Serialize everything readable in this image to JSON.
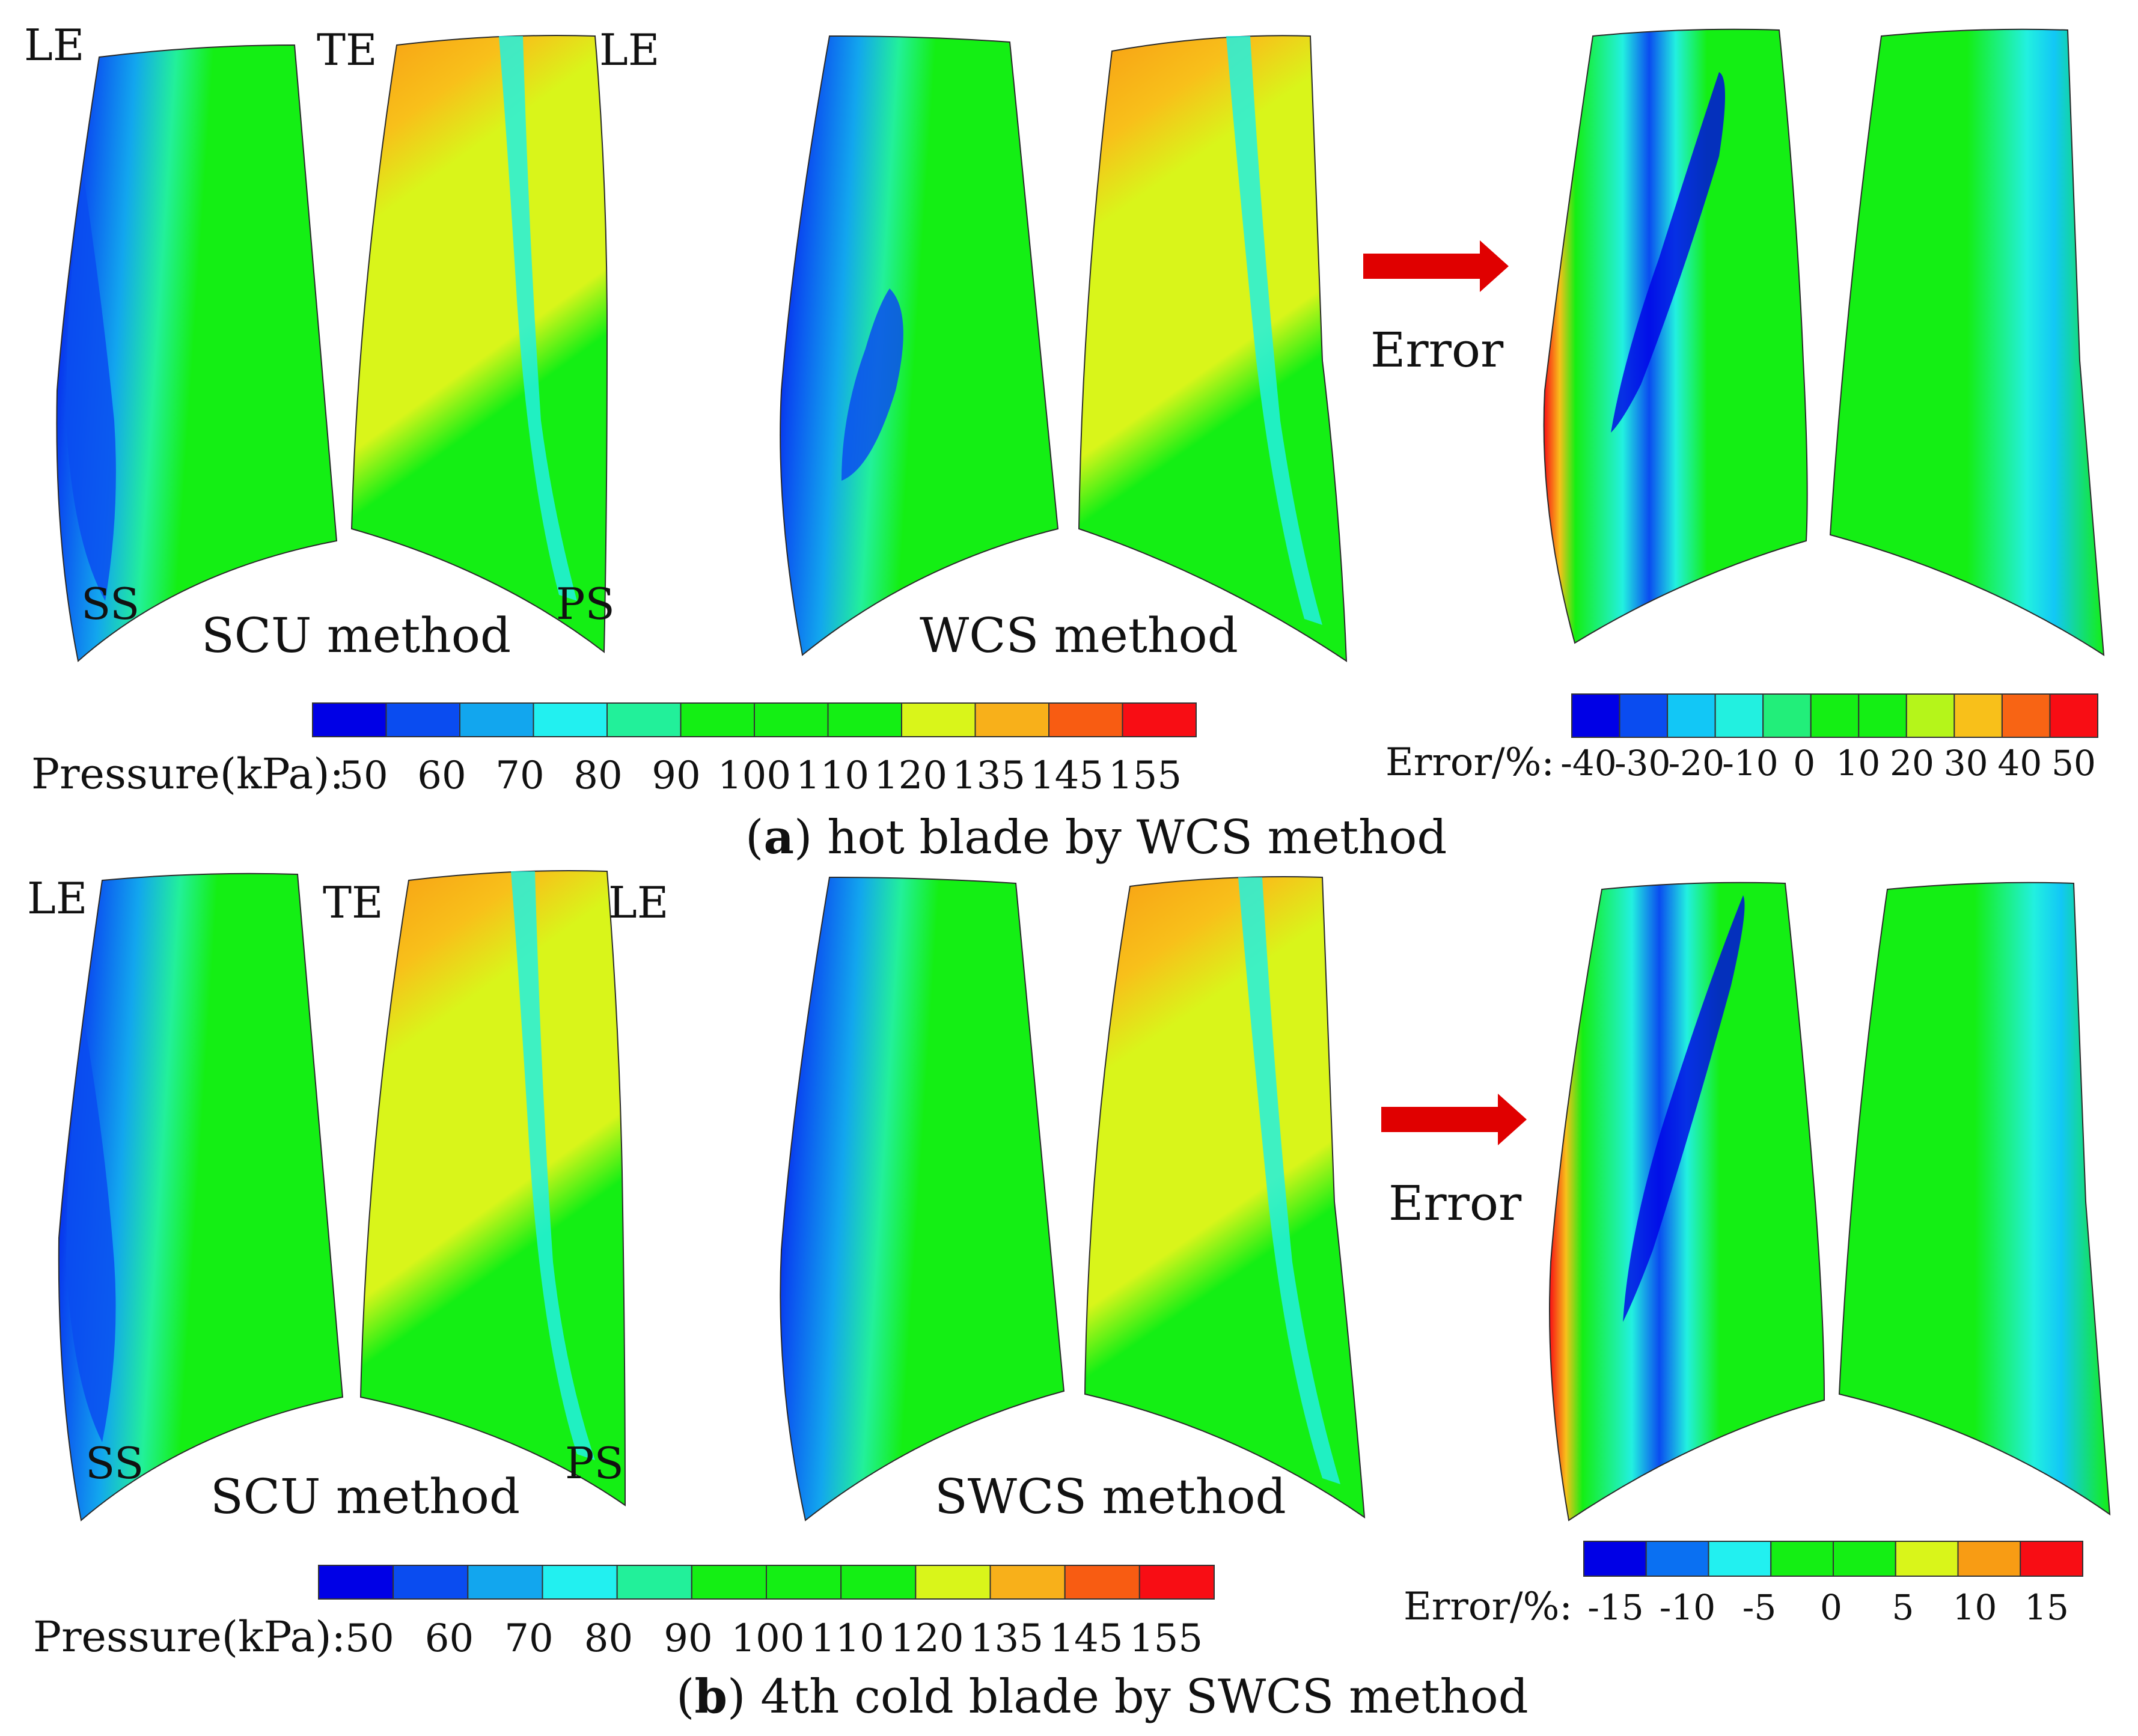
{
  "colors": {
    "pressure_scale": [
      "#0000e6",
      "#0a4cf0",
      "#12a6ee",
      "#22f0f0",
      "#22f09a",
      "#14ef14",
      "#14ef14",
      "#14ef14",
      "#d9f51a",
      "#f8b01a",
      "#f85c12",
      "#f80d14"
    ],
    "error_scale_a": [
      "#0000e6",
      "#0a4cf0",
      "#12c7f6",
      "#22f0e0",
      "#22ee7a",
      "#14ef14",
      "#14ef14",
      "#b5f51a",
      "#f8c01a",
      "#f86414",
      "#f80d14"
    ],
    "error_scale_b": [
      "#0000e6",
      "#0a70f2",
      "#22f0f0",
      "#14ef14",
      "#14ef14",
      "#d9f51a",
      "#f89c14",
      "#f80d14"
    ],
    "arrow": "#e00000"
  },
  "panels": [
    {
      "id": "a",
      "caption_letter": "a",
      "caption_text": ") hot blade by WCS method",
      "caption_open": "(",
      "labels": {
        "le_left": "LE",
        "te": "TE",
        "le_right": "LE",
        "ss": "SS",
        "ps": "PS"
      },
      "method_left": "SCU method",
      "method_right": "WCS method",
      "arrow_label": "Error",
      "pressure_legend": {
        "label": "Pressure(kPa):",
        "ticks": [
          "50",
          "60",
          "70",
          "80",
          "90",
          "100",
          "110",
          "120",
          "135",
          "145",
          "155"
        ]
      },
      "error_legend": {
        "label": "Error/%:",
        "ticks": [
          "-40",
          "-30",
          "-20",
          "-10",
          "0",
          "10",
          "20",
          "30",
          "40",
          "50"
        ]
      }
    },
    {
      "id": "b",
      "caption_letter": "b",
      "caption_text": ") 4th cold blade by SWCS method",
      "caption_open": "(",
      "labels": {
        "le_left": "LE",
        "te": "TE",
        "le_right": "LE",
        "ss": "SS",
        "ps": "PS"
      },
      "method_left": "SCU method",
      "method_right": "SWCS method",
      "arrow_label": "Error",
      "pressure_legend": {
        "label": "Pressure(kPa):",
        "ticks": [
          "50",
          "60",
          "70",
          "80",
          "90",
          "100",
          "110",
          "120",
          "135",
          "145",
          "155"
        ]
      },
      "error_legend": {
        "label": "Error/%:",
        "ticks": [
          "-15",
          "-10",
          "-5",
          "0",
          "5",
          "10",
          "15"
        ]
      }
    }
  ]
}
